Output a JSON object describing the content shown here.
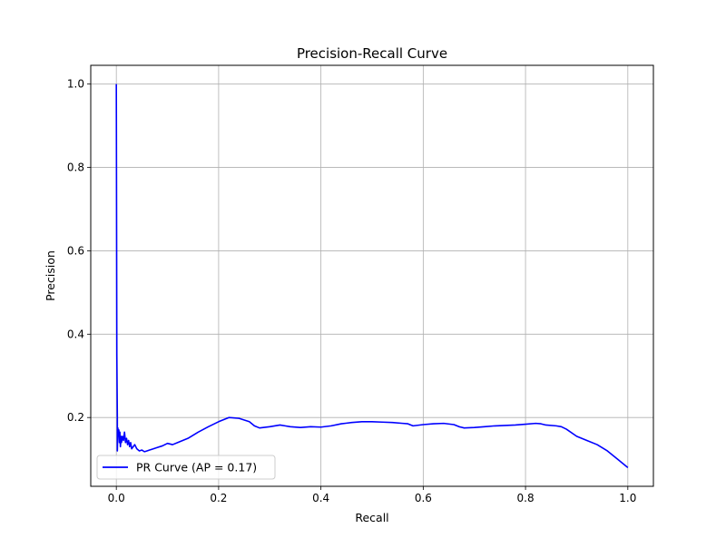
{
  "chart_data": {
    "type": "line",
    "title": "Precision-Recall Curve",
    "xlabel": "Recall",
    "ylabel": "Precision",
    "xlim": [
      -0.05,
      1.05
    ],
    "ylim": [
      0.035,
      1.045
    ],
    "xticks": [
      0.0,
      0.2,
      0.4,
      0.6,
      0.8,
      1.0
    ],
    "xtick_labels": [
      "0.0",
      "0.2",
      "0.4",
      "0.6",
      "0.8",
      "1.0"
    ],
    "yticks": [
      0.2,
      0.4,
      0.6,
      0.8,
      1.0
    ],
    "ytick_labels": [
      "0.2",
      "0.4",
      "0.6",
      "0.8",
      "1.0"
    ],
    "grid": true,
    "legend_position": "lower-left",
    "series": [
      {
        "name": "PR Curve (AP = 0.17)",
        "color": "#0000ff",
        "x": [
          0.0,
          0.001,
          0.002,
          0.002,
          0.003,
          0.004,
          0.005,
          0.006,
          0.007,
          0.008,
          0.009,
          0.01,
          0.012,
          0.014,
          0.016,
          0.018,
          0.02,
          0.022,
          0.024,
          0.026,
          0.028,
          0.03,
          0.033,
          0.036,
          0.04,
          0.045,
          0.05,
          0.055,
          0.06,
          0.065,
          0.07,
          0.08,
          0.09,
          0.1,
          0.11,
          0.12,
          0.14,
          0.16,
          0.18,
          0.2,
          0.21,
          0.22,
          0.24,
          0.26,
          0.27,
          0.28,
          0.3,
          0.32,
          0.33,
          0.34,
          0.36,
          0.38,
          0.4,
          0.42,
          0.44,
          0.46,
          0.48,
          0.5,
          0.52,
          0.54,
          0.56,
          0.57,
          0.58,
          0.6,
          0.62,
          0.64,
          0.66,
          0.67,
          0.68,
          0.7,
          0.72,
          0.74,
          0.76,
          0.78,
          0.8,
          0.82,
          0.83,
          0.84,
          0.86,
          0.87,
          0.88,
          0.9,
          0.92,
          0.94,
          0.96,
          0.98,
          0.99,
          1.0
        ],
        "y": [
          1.0,
          0.35,
          0.2,
          0.12,
          0.175,
          0.16,
          0.17,
          0.14,
          0.165,
          0.13,
          0.155,
          0.14,
          0.155,
          0.145,
          0.165,
          0.14,
          0.15,
          0.135,
          0.145,
          0.13,
          0.14,
          0.125,
          0.13,
          0.135,
          0.125,
          0.12,
          0.122,
          0.118,
          0.12,
          0.122,
          0.124,
          0.128,
          0.132,
          0.138,
          0.135,
          0.14,
          0.15,
          0.165,
          0.178,
          0.19,
          0.195,
          0.2,
          0.198,
          0.19,
          0.18,
          0.175,
          0.178,
          0.182,
          0.18,
          0.178,
          0.176,
          0.178,
          0.177,
          0.18,
          0.185,
          0.188,
          0.19,
          0.19,
          0.189,
          0.188,
          0.186,
          0.185,
          0.18,
          0.183,
          0.185,
          0.186,
          0.183,
          0.178,
          0.175,
          0.176,
          0.178,
          0.18,
          0.181,
          0.182,
          0.184,
          0.186,
          0.185,
          0.182,
          0.18,
          0.178,
          0.172,
          0.155,
          0.145,
          0.135,
          0.12,
          0.1,
          0.09,
          0.08
        ]
      }
    ]
  }
}
